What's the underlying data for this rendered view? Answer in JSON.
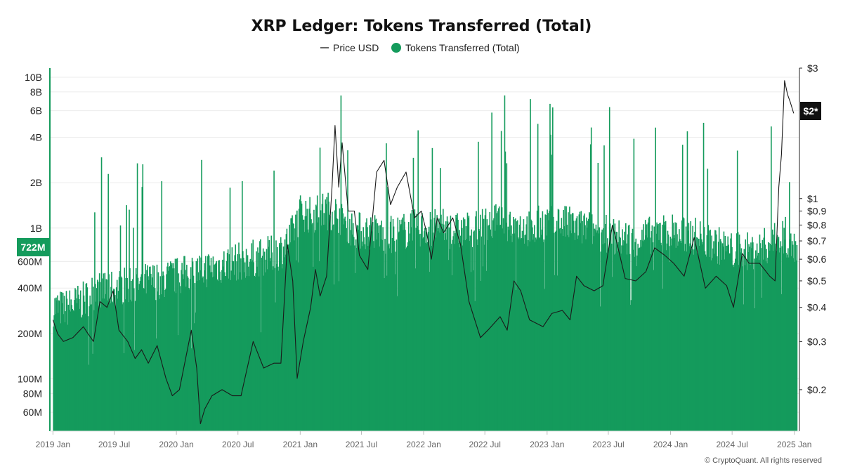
{
  "colors": {
    "tokens": "#149b5c",
    "price": "#1a1a1a",
    "grid": "#ececec",
    "axis": "#222222",
    "badge_price_bg": "#111111"
  },
  "legend": {
    "price_label": "Price USD",
    "tokens_label": "Tokens Transferred (Total)"
  },
  "footer": "© CryptoQuant. All rights reserved",
  "chart_data": {
    "type": "bar",
    "title": "XRP Ledger: Tokens Transferred (Total)",
    "y_left_scale": "log",
    "y_right_scale": "log",
    "y_left_range": [
      45000000,
      11500000000
    ],
    "y_right_range": [
      0.141,
      3.0
    ],
    "x_range": [
      "2018-12-25",
      "2025-01-14"
    ],
    "grid": "horizontal",
    "legend_position": "top-center",
    "y_left_ticks": [
      {
        "value": 10000000000,
        "label": "10B"
      },
      {
        "value": 8000000000,
        "label": "8B"
      },
      {
        "value": 6000000000,
        "label": "6B"
      },
      {
        "value": 4000000000,
        "label": "4B"
      },
      {
        "value": 2000000000,
        "label": "2B"
      },
      {
        "value": 1000000000,
        "label": "1B"
      },
      {
        "value": 600000000,
        "label": "600M"
      },
      {
        "value": 400000000,
        "label": "400M"
      },
      {
        "value": 200000000,
        "label": "200M"
      },
      {
        "value": 100000000,
        "label": "100M"
      },
      {
        "value": 80000000,
        "label": "80M"
      },
      {
        "value": 60000000,
        "label": "60M"
      }
    ],
    "y_right_ticks": [
      {
        "value": 3,
        "label": "$3"
      },
      {
        "value": 1,
        "label": "$1"
      },
      {
        "value": 0.9,
        "label": "$0.9"
      },
      {
        "value": 0.8,
        "label": "$0.8"
      },
      {
        "value": 0.7,
        "label": "$0.7"
      },
      {
        "value": 0.6,
        "label": "$0.6"
      },
      {
        "value": 0.5,
        "label": "$0.5"
      },
      {
        "value": 0.4,
        "label": "$0.4"
      },
      {
        "value": 0.3,
        "label": "$0.3"
      },
      {
        "value": 0.2,
        "label": "$0.2"
      }
    ],
    "x_ticks": [
      {
        "date": "2019-01-01",
        "label": "2019 Jan"
      },
      {
        "date": "2019-07-01",
        "label": "2019 Jul"
      },
      {
        "date": "2020-01-01",
        "label": "2020 Jan"
      },
      {
        "date": "2020-07-01",
        "label": "2020 Jul"
      },
      {
        "date": "2021-01-01",
        "label": "2021 Jan"
      },
      {
        "date": "2021-07-01",
        "label": "2021 Jul"
      },
      {
        "date": "2022-01-01",
        "label": "2022 Jan"
      },
      {
        "date": "2022-07-01",
        "label": "2022 Jul"
      },
      {
        "date": "2023-01-01",
        "label": "2023 Jan"
      },
      {
        "date": "2023-07-01",
        "label": "2023 Jul"
      },
      {
        "date": "2024-01-01",
        "label": "2024 Jan"
      },
      {
        "date": "2024-07-01",
        "label": "2024 Jul"
      },
      {
        "date": "2025-01-01",
        "label": "2025 Jan"
      }
    ],
    "last_value_badges": {
      "tokens": "722M",
      "price": "$2*"
    },
    "series": [
      {
        "name": "Tokens Transferred (Total)",
        "kind": "bars",
        "points": [
          {
            "date": "2019-01-01",
            "value": 300000000
          },
          {
            "date": "2019-02-01",
            "value": 290000000
          },
          {
            "date": "2019-03-01",
            "value": 310000000
          },
          {
            "date": "2019-04-01",
            "value": 330000000
          },
          {
            "date": "2019-05-01",
            "value": 380000000
          },
          {
            "date": "2019-06-01",
            "value": 400000000
          },
          {
            "date": "2019-07-01",
            "value": 390000000
          },
          {
            "date": "2019-08-01",
            "value": 420000000
          },
          {
            "date": "2019-09-01",
            "value": 420000000
          },
          {
            "date": "2019-10-01",
            "value": 440000000
          },
          {
            "date": "2019-11-01",
            "value": 450000000
          },
          {
            "date": "2019-12-01",
            "value": 460000000
          },
          {
            "date": "2020-01-01",
            "value": 480000000
          },
          {
            "date": "2020-02-01",
            "value": 500000000
          },
          {
            "date": "2020-03-01",
            "value": 520000000
          },
          {
            "date": "2020-04-01",
            "value": 540000000
          },
          {
            "date": "2020-05-01",
            "value": 560000000
          },
          {
            "date": "2020-06-01",
            "value": 580000000
          },
          {
            "date": "2020-07-01",
            "value": 600000000
          },
          {
            "date": "2020-08-01",
            "value": 620000000
          },
          {
            "date": "2020-09-01",
            "value": 640000000
          },
          {
            "date": "2020-10-01",
            "value": 660000000
          },
          {
            "date": "2020-11-01",
            "value": 700000000
          },
          {
            "date": "2020-12-01",
            "value": 850000000
          },
          {
            "date": "2021-01-01",
            "value": 1300000000
          },
          {
            "date": "2021-02-01",
            "value": 1200000000
          },
          {
            "date": "2021-03-01",
            "value": 1300000000
          },
          {
            "date": "2021-04-01",
            "value": 1300000000
          },
          {
            "date": "2021-05-01",
            "value": 1200000000
          },
          {
            "date": "2021-06-01",
            "value": 1000000000
          },
          {
            "date": "2021-07-01",
            "value": 950000000
          },
          {
            "date": "2021-08-01",
            "value": 950000000
          },
          {
            "date": "2021-09-01",
            "value": 900000000
          },
          {
            "date": "2021-10-01",
            "value": 900000000
          },
          {
            "date": "2021-11-01",
            "value": 950000000
          },
          {
            "date": "2021-12-01",
            "value": 1000000000
          },
          {
            "date": "2022-01-01",
            "value": 1000000000
          },
          {
            "date": "2022-02-01",
            "value": 1000000000
          },
          {
            "date": "2022-03-01",
            "value": 1000000000
          },
          {
            "date": "2022-04-01",
            "value": 950000000
          },
          {
            "date": "2022-05-01",
            "value": 950000000
          },
          {
            "date": "2022-06-01",
            "value": 1000000000
          },
          {
            "date": "2022-07-01",
            "value": 1050000000
          },
          {
            "date": "2022-08-01",
            "value": 1100000000
          },
          {
            "date": "2022-09-01",
            "value": 1100000000
          },
          {
            "date": "2022-10-01",
            "value": 1050000000
          },
          {
            "date": "2022-11-01",
            "value": 1000000000
          },
          {
            "date": "2022-12-01",
            "value": 1050000000
          },
          {
            "date": "2023-01-01",
            "value": 1100000000
          },
          {
            "date": "2023-02-01",
            "value": 1100000000
          },
          {
            "date": "2023-03-01",
            "value": 1050000000
          },
          {
            "date": "2023-04-01",
            "value": 1000000000
          },
          {
            "date": "2023-05-01",
            "value": 1000000000
          },
          {
            "date": "2023-06-01",
            "value": 950000000
          },
          {
            "date": "2023-07-01",
            "value": 900000000
          },
          {
            "date": "2023-08-01",
            "value": 850000000
          },
          {
            "date": "2023-09-01",
            "value": 850000000
          },
          {
            "date": "2023-10-01",
            "value": 850000000
          },
          {
            "date": "2023-11-01",
            "value": 900000000
          },
          {
            "date": "2023-12-01",
            "value": 950000000
          },
          {
            "date": "2024-01-01",
            "value": 950000000
          },
          {
            "date": "2024-02-01",
            "value": 900000000
          },
          {
            "date": "2024-03-01",
            "value": 900000000
          },
          {
            "date": "2024-04-01",
            "value": 850000000
          },
          {
            "date": "2024-05-01",
            "value": 800000000
          },
          {
            "date": "2024-06-01",
            "value": 750000000
          },
          {
            "date": "2024-07-01",
            "value": 700000000
          },
          {
            "date": "2024-08-01",
            "value": 700000000
          },
          {
            "date": "2024-09-01",
            "value": 700000000
          },
          {
            "date": "2024-10-01",
            "value": 750000000
          },
          {
            "date": "2024-11-01",
            "value": 800000000
          },
          {
            "date": "2024-12-01",
            "value": 900000000
          },
          {
            "date": "2025-01-01",
            "value": 722000000
          }
        ]
      },
      {
        "name": "Price USD",
        "kind": "line",
        "points": [
          {
            "date": "2019-01-01",
            "value": 0.36
          },
          {
            "date": "2019-01-15",
            "value": 0.32
          },
          {
            "date": "2019-02-01",
            "value": 0.3
          },
          {
            "date": "2019-03-01",
            "value": 0.31
          },
          {
            "date": "2019-04-01",
            "value": 0.34
          },
          {
            "date": "2019-04-15",
            "value": 0.32
          },
          {
            "date": "2019-05-01",
            "value": 0.3
          },
          {
            "date": "2019-05-20",
            "value": 0.42
          },
          {
            "date": "2019-06-10",
            "value": 0.4
          },
          {
            "date": "2019-06-28",
            "value": 0.46
          },
          {
            "date": "2019-07-15",
            "value": 0.33
          },
          {
            "date": "2019-08-10",
            "value": 0.3
          },
          {
            "date": "2019-09-01",
            "value": 0.26
          },
          {
            "date": "2019-09-20",
            "value": 0.28
          },
          {
            "date": "2019-10-10",
            "value": 0.25
          },
          {
            "date": "2019-11-05",
            "value": 0.29
          },
          {
            "date": "2019-12-01",
            "value": 0.22
          },
          {
            "date": "2019-12-20",
            "value": 0.19
          },
          {
            "date": "2020-01-10",
            "value": 0.2
          },
          {
            "date": "2020-02-14",
            "value": 0.33
          },
          {
            "date": "2020-03-01",
            "value": 0.24
          },
          {
            "date": "2020-03-12",
            "value": 0.15
          },
          {
            "date": "2020-03-25",
            "value": 0.17
          },
          {
            "date": "2020-04-15",
            "value": 0.19
          },
          {
            "date": "2020-05-15",
            "value": 0.2
          },
          {
            "date": "2020-06-15",
            "value": 0.19
          },
          {
            "date": "2020-07-10",
            "value": 0.19
          },
          {
            "date": "2020-07-25",
            "value": 0.23
          },
          {
            "date": "2020-08-15",
            "value": 0.3
          },
          {
            "date": "2020-09-15",
            "value": 0.24
          },
          {
            "date": "2020-10-15",
            "value": 0.25
          },
          {
            "date": "2020-11-05",
            "value": 0.25
          },
          {
            "date": "2020-11-24",
            "value": 0.68
          },
          {
            "date": "2020-12-10",
            "value": 0.5
          },
          {
            "date": "2020-12-23",
            "value": 0.22
          },
          {
            "date": "2021-01-10",
            "value": 0.3
          },
          {
            "date": "2021-02-01",
            "value": 0.4
          },
          {
            "date": "2021-02-15",
            "value": 0.55
          },
          {
            "date": "2021-03-01",
            "value": 0.44
          },
          {
            "date": "2021-03-20",
            "value": 0.52
          },
          {
            "date": "2021-04-05",
            "value": 1.1
          },
          {
            "date": "2021-04-14",
            "value": 1.85
          },
          {
            "date": "2021-04-25",
            "value": 1.1
          },
          {
            "date": "2021-05-05",
            "value": 1.6
          },
          {
            "date": "2021-05-23",
            "value": 0.9
          },
          {
            "date": "2021-06-10",
            "value": 0.9
          },
          {
            "date": "2021-06-25",
            "value": 0.62
          },
          {
            "date": "2021-07-20",
            "value": 0.55
          },
          {
            "date": "2021-08-15",
            "value": 1.25
          },
          {
            "date": "2021-09-06",
            "value": 1.38
          },
          {
            "date": "2021-09-25",
            "value": 0.95
          },
          {
            "date": "2021-10-15",
            "value": 1.1
          },
          {
            "date": "2021-11-10",
            "value": 1.25
          },
          {
            "date": "2021-12-05",
            "value": 0.85
          },
          {
            "date": "2021-12-25",
            "value": 0.9
          },
          {
            "date": "2022-01-10",
            "value": 0.75
          },
          {
            "date": "2022-01-24",
            "value": 0.6
          },
          {
            "date": "2022-02-10",
            "value": 0.85
          },
          {
            "date": "2022-03-01",
            "value": 0.75
          },
          {
            "date": "2022-03-28",
            "value": 0.85
          },
          {
            "date": "2022-04-20",
            "value": 0.68
          },
          {
            "date": "2022-05-15",
            "value": 0.42
          },
          {
            "date": "2022-06-18",
            "value": 0.31
          },
          {
            "date": "2022-07-10",
            "value": 0.33
          },
          {
            "date": "2022-08-15",
            "value": 0.37
          },
          {
            "date": "2022-09-05",
            "value": 0.33
          },
          {
            "date": "2022-09-25",
            "value": 0.5
          },
          {
            "date": "2022-10-15",
            "value": 0.46
          },
          {
            "date": "2022-11-10",
            "value": 0.36
          },
          {
            "date": "2022-12-20",
            "value": 0.34
          },
          {
            "date": "2023-01-15",
            "value": 0.38
          },
          {
            "date": "2023-02-15",
            "value": 0.39
          },
          {
            "date": "2023-03-10",
            "value": 0.36
          },
          {
            "date": "2023-03-29",
            "value": 0.52
          },
          {
            "date": "2023-04-20",
            "value": 0.48
          },
          {
            "date": "2023-05-20",
            "value": 0.46
          },
          {
            "date": "2023-06-15",
            "value": 0.48
          },
          {
            "date": "2023-07-13",
            "value": 0.8
          },
          {
            "date": "2023-07-25",
            "value": 0.7
          },
          {
            "date": "2023-08-20",
            "value": 0.51
          },
          {
            "date": "2023-09-20",
            "value": 0.5
          },
          {
            "date": "2023-10-20",
            "value": 0.54
          },
          {
            "date": "2023-11-15",
            "value": 0.66
          },
          {
            "date": "2023-12-15",
            "value": 0.62
          },
          {
            "date": "2024-01-10",
            "value": 0.58
          },
          {
            "date": "2024-02-10",
            "value": 0.52
          },
          {
            "date": "2024-03-11",
            "value": 0.72
          },
          {
            "date": "2024-04-13",
            "value": 0.47
          },
          {
            "date": "2024-05-15",
            "value": 0.52
          },
          {
            "date": "2024-06-15",
            "value": 0.48
          },
          {
            "date": "2024-07-05",
            "value": 0.4
          },
          {
            "date": "2024-07-31",
            "value": 0.63
          },
          {
            "date": "2024-08-20",
            "value": 0.58
          },
          {
            "date": "2024-09-20",
            "value": 0.58
          },
          {
            "date": "2024-10-20",
            "value": 0.52
          },
          {
            "date": "2024-11-05",
            "value": 0.5
          },
          {
            "date": "2024-11-16",
            "value": 1.1
          },
          {
            "date": "2024-11-24",
            "value": 1.45
          },
          {
            "date": "2024-12-03",
            "value": 2.7
          },
          {
            "date": "2024-12-12",
            "value": 2.4
          },
          {
            "date": "2024-12-20",
            "value": 2.25
          },
          {
            "date": "2024-12-30",
            "value": 2.05
          }
        ]
      }
    ]
  }
}
